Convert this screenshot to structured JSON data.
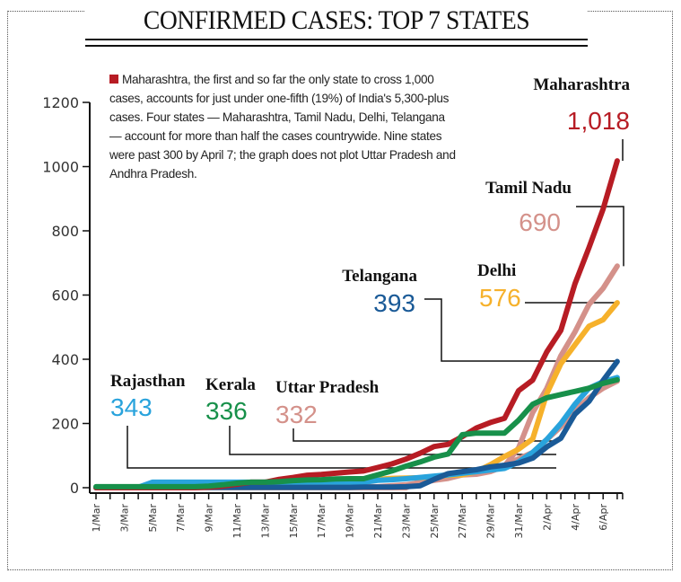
{
  "header": {
    "title": "CONFIRMED CASES: TOP 7 STATES"
  },
  "note": {
    "bullet_color": "#b71c24",
    "text": "Maharashtra, the first and so far the only state to cross 1,000 cases, accounts for just under one-fifth (19%) of India's 5,300-plus cases. Four states — Maharashtra, Tamil Nadu, Delhi, Telangana — account for more than half the cases countrywide. Nine states were past 300 by April 7; the graph does not plot Uttar Pradesh and Andhra Pradesh."
  },
  "chart_data": {
    "type": "line",
    "title": "CONFIRMED CASES: TOP 7 STATES",
    "xlabel": "",
    "ylabel": "",
    "ylim": [
      0,
      1200
    ],
    "yticks": [
      0,
      200,
      400,
      600,
      800,
      1000,
      1200
    ],
    "grid": false,
    "legend": "direct labels at line ends",
    "x": [
      "1/Mar",
      "2/Mar",
      "3/Mar",
      "4/Mar",
      "5/Mar",
      "6/Mar",
      "7/Mar",
      "8/Mar",
      "9/Mar",
      "10/Mar",
      "11/Mar",
      "12/Mar",
      "13/Mar",
      "14/Mar",
      "15/Mar",
      "16/Mar",
      "17/Mar",
      "18/Mar",
      "19/Mar",
      "20/Mar",
      "21/Mar",
      "22/Mar",
      "23/Mar",
      "24/Mar",
      "25/Mar",
      "26/Mar",
      "27/Mar",
      "28/Mar",
      "29/Mar",
      "30/Mar",
      "31/Mar",
      "1/Apr",
      "2/Apr",
      "3/Apr",
      "4/Apr",
      "5/Apr",
      "6/Apr",
      "7/Apr"
    ],
    "xtick_labels": [
      "1/Mar",
      "3/Mar",
      "5/Mar",
      "7/Mar",
      "9/Mar",
      "11/Mar",
      "13/Mar",
      "15/Mar",
      "17/Mar",
      "19/Mar",
      "21/Mar",
      "23/Mar",
      "25/Mar",
      "27/Mar",
      "29/Mar",
      "31/Mar",
      "2/Apr",
      "4/Apr",
      "6/Apr"
    ],
    "series": [
      {
        "name": "Rajasthan",
        "label_value": "343",
        "color": "#29a3dc",
        "values": [
          0,
          0,
          0,
          1,
          17,
          17,
          17,
          17,
          17,
          17,
          17,
          17,
          17,
          17,
          17,
          17,
          17,
          17,
          17,
          17,
          23,
          25,
          28,
          32,
          36,
          40,
          45,
          50,
          55,
          60,
          80,
          110,
          150,
          200,
          260,
          310,
          330,
          343
        ]
      },
      {
        "name": "Kerala",
        "label_value": "336",
        "color": "#17904a",
        "values": [
          3,
          3,
          3,
          3,
          3,
          3,
          3,
          3,
          5,
          9,
          14,
          17,
          17,
          19,
          22,
          24,
          25,
          27,
          28,
          28,
          40,
          52,
          67,
          80,
          95,
          105,
          165,
          170,
          170,
          170,
          210,
          260,
          280,
          290,
          300,
          310,
          325,
          336
        ]
      },
      {
        "name": "Uttar Pradesh",
        "label_value": "332",
        "color": "#d4918a",
        "values": [
          0,
          0,
          0,
          0,
          0,
          0,
          0,
          0,
          0,
          0,
          0,
          0,
          0,
          0,
          0,
          0,
          0,
          0,
          0,
          0,
          0,
          0,
          0,
          20,
          30,
          35,
          45,
          50,
          60,
          70,
          90,
          110,
          150,
          190,
          240,
          280,
          310,
          332
        ]
      },
      {
        "name": "Maharashtra",
        "label_value": "1,018",
        "color": "#b71c24",
        "values": [
          0,
          0,
          0,
          0,
          0,
          0,
          0,
          0,
          2,
          5,
          11,
          17,
          17,
          26,
          32,
          39,
          41,
          45,
          49,
          52,
          63,
          74,
          89,
          107,
          128,
          135,
          159,
          186,
          203,
          216,
          302,
          335,
          423,
          490,
          635,
          748,
          868,
          1018
        ]
      },
      {
        "name": "Tamil Nadu",
        "label_value": "690",
        "color": "#d4918a",
        "values": [
          0,
          0,
          0,
          0,
          0,
          0,
          0,
          1,
          1,
          1,
          1,
          1,
          1,
          1,
          1,
          1,
          1,
          1,
          2,
          3,
          3,
          6,
          9,
          15,
          23,
          29,
          40,
          42,
          50,
          67,
          124,
          234,
          309,
          411,
          485,
          571,
          621,
          690
        ]
      },
      {
        "name": "Delhi",
        "label_value": "576",
        "color": "#f6b12b",
        "values": [
          0,
          0,
          1,
          1,
          2,
          3,
          3,
          4,
          4,
          5,
          6,
          6,
          7,
          7,
          7,
          7,
          8,
          10,
          12,
          17,
          26,
          29,
          30,
          31,
          35,
          39,
          40,
          50,
          72,
          97,
          120,
          152,
          293,
          386,
          445,
          503,
          523,
          576
        ]
      },
      {
        "name": "Telangana",
        "label_value": "393",
        "color": "#1a5a97",
        "values": [
          0,
          0,
          1,
          1,
          1,
          1,
          1,
          1,
          1,
          1,
          1,
          1,
          1,
          1,
          1,
          1,
          1,
          1,
          1,
          2,
          2,
          2,
          3,
          6,
          26,
          44,
          50,
          56,
          65,
          70,
          77,
          92,
          127,
          154,
          229,
          269,
          334,
          393
        ]
      }
    ]
  }
}
